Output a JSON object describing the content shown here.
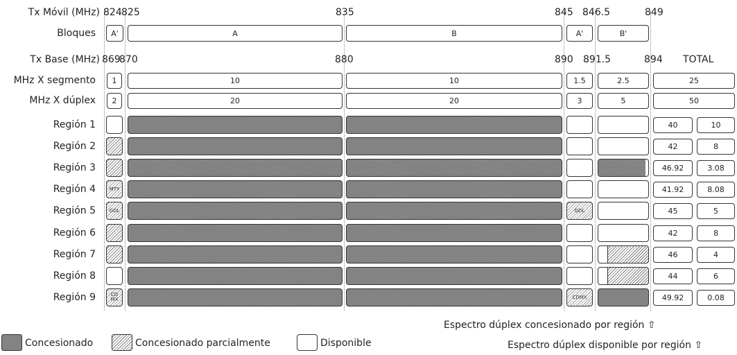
{
  "tx_movil": {
    "label": "Tx Móvil (MHz)",
    "f824": "824",
    "f825": "825",
    "f835": "835",
    "f845": "845",
    "f8465": "846.5",
    "f849": "849"
  },
  "bloques": {
    "label": "Bloques",
    "a1": "A'",
    "a": "A",
    "b": "B",
    "a2": "A'",
    "b2": "B'"
  },
  "tx_base": {
    "label": "Tx Base (MHz)",
    "f869": "869",
    "f870": "870",
    "f880": "880",
    "f890": "890",
    "f8915": "891.5",
    "f894": "894",
    "total": "TOTAL"
  },
  "mhz_segmento": {
    "label": "MHz X segmento",
    "v1": "1",
    "v2": "10",
    "v3": "10",
    "v4": "1.5",
    "v5": "2.5",
    "total": "25"
  },
  "mhz_duplex": {
    "label": "MHz X dúplex",
    "v1": "2",
    "v2": "20",
    "v3": "20",
    "v4": "3",
    "v5": "5",
    "total": "50"
  },
  "regions": [
    {
      "name": "Región 1",
      "tag": "",
      "tag2": "",
      "conc": "40",
      "disp": "10"
    },
    {
      "name": "Región 2",
      "tag": "",
      "tag2": "",
      "conc": "42",
      "disp": "8"
    },
    {
      "name": "Región 3",
      "tag": "",
      "tag2": "",
      "conc": "46.92",
      "disp": "3.08"
    },
    {
      "name": "Región 4",
      "tag": "MTY",
      "tag2": "",
      "conc": "41.92",
      "disp": "8.08"
    },
    {
      "name": "Región 5",
      "tag": "GDL",
      "tag2": "GDL",
      "conc": "45",
      "disp": "5"
    },
    {
      "name": "Región 6",
      "tag": "",
      "tag2": "",
      "conc": "42",
      "disp": "8"
    },
    {
      "name": "Región 7",
      "tag": "",
      "tag2": "",
      "conc": "46",
      "disp": "4"
    },
    {
      "name": "Región 8",
      "tag": "",
      "tag2": "",
      "conc": "44",
      "disp": "6"
    },
    {
      "name": "Región 9",
      "tag": "CD MX",
      "tag2": "CDMX",
      "conc": "49.92",
      "disp": "0.08"
    }
  ],
  "footer": {
    "concesionado_por_region": "Espectro dúplex concesionado por región ⇧",
    "disponible_por_region": "Espectro dúplex disponible por región ⇧"
  },
  "legend": {
    "concesionado": "Concesionado",
    "parcial": "Concesionado parcialmente",
    "disponible": "Disponible"
  }
}
